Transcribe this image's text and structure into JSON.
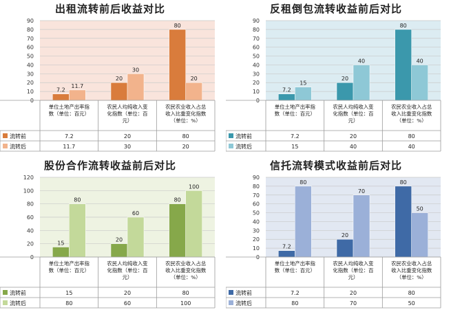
{
  "chart_data": [
    {
      "type": "bar",
      "title": "出租流转前后收益对比",
      "categories": [
        "单位土地产出率指数（单位：百元）",
        "农民人均纯收入变化指数（单位：百元）",
        "农民农业收入占总收入比重变化指数（单位：%）"
      ],
      "category_lines": [
        [
          "单位土地产出率指",
          "数（单位：百元）"
        ],
        [
          "农民人均纯收入变",
          "化指数（单位：百",
          "元）"
        ],
        [
          "农民农业收入占总",
          "收入比重变化指数",
          "（单位：%）"
        ]
      ],
      "series": [
        {
          "name": "流转前",
          "values": [
            7.2,
            20,
            80
          ],
          "labels": [
            "7.2",
            "20",
            "80"
          ]
        },
        {
          "name": "流转后",
          "values": [
            11.7,
            30,
            20
          ],
          "labels": [
            "11.7",
            "30",
            "20"
          ]
        }
      ],
      "ylim": [
        0,
        90
      ],
      "yticks": [
        0,
        10,
        20,
        30,
        40,
        50,
        60,
        70,
        80,
        90
      ],
      "colors": [
        "#d97c3c",
        "#f2b38c"
      ],
      "plot_bg": "#f9e4dc",
      "grid": true
    },
    {
      "type": "bar",
      "title": "反租倒包流转收益前后对比",
      "categories": [
        "单位土地产出率指数（单位：百元）",
        "农民人均纯收入变化指数（单位：百元）",
        "农民农业收入占总收入比重变化指数（单位：%）"
      ],
      "category_lines": [
        [
          "单位土地产出率指",
          "数（单位：百元）"
        ],
        [
          "农民人均纯收入变",
          "化指数（单位：百",
          "元）"
        ],
        [
          "农民农业收入占总",
          "收入比重变化指数",
          "（单位：%）"
        ]
      ],
      "series": [
        {
          "name": "流转前",
          "values": [
            7.2,
            20,
            80
          ],
          "labels": [
            "7.2",
            "20",
            "80"
          ]
        },
        {
          "name": "流转后",
          "values": [
            15,
            40,
            40
          ],
          "labels": [
            "15",
            "40",
            "40"
          ]
        }
      ],
      "ylim": [
        0,
        90
      ],
      "yticks": [
        0,
        10,
        20,
        30,
        40,
        50,
        60,
        70,
        80,
        90
      ],
      "colors": [
        "#3b98ac",
        "#8ec8d6"
      ],
      "plot_bg": "#dcecf2",
      "grid": true
    },
    {
      "type": "bar",
      "title": "股份合作流转收益前后对比",
      "categories": [
        "单位土地产出率指数（单位：百元）",
        "农民人均纯收入变化指数（单位：百元）",
        "农民农业收入占总收入比重变化指数（单位：%）"
      ],
      "category_lines": [
        [
          "单位土地产出率指",
          "数（单位：百元）"
        ],
        [
          "农民人均纯收入变",
          "化指数（单位：百",
          "元）"
        ],
        [
          "农民农业收入占总",
          "收入比重变化指数",
          "（单位：%）"
        ]
      ],
      "series": [
        {
          "name": "流转前",
          "values": [
            15,
            20,
            80
          ],
          "labels": [
            "15",
            "20",
            "80"
          ]
        },
        {
          "name": "流转后",
          "values": [
            80,
            60,
            100
          ],
          "labels": [
            "80",
            "60",
            "100"
          ]
        }
      ],
      "ylim": [
        0,
        120
      ],
      "yticks": [
        0,
        20,
        40,
        60,
        80,
        100,
        120
      ],
      "colors": [
        "#86a84a",
        "#c3d99a"
      ],
      "plot_bg": "#eef3e2",
      "grid": true
    },
    {
      "type": "bar",
      "title": "信托流转模式收益前后对比",
      "categories": [
        "单位土地产出率指数（单位：百元）",
        "农民人均纯收入变化指数（单位：百元）",
        "农民农业收入占总收入比重变化指数（单位：%）"
      ],
      "category_lines": [
        [
          "单位土地产出率指",
          "数（单位：百元）"
        ],
        [
          "农民人均纯收入变",
          "化指数（单位：百",
          "元）"
        ],
        [
          "农民农业收入占总",
          "收入比重变化指数",
          "（单位：%）"
        ]
      ],
      "series": [
        {
          "name": "流转前",
          "values": [
            7.2,
            20,
            80
          ],
          "labels": [
            "7.2",
            "20",
            "80"
          ]
        },
        {
          "name": "流转后",
          "values": [
            80,
            70,
            50
          ],
          "labels": [
            "80",
            "70",
            "50"
          ]
        }
      ],
      "ylim": [
        0,
        90
      ],
      "yticks": [
        0,
        10,
        20,
        30,
        40,
        50,
        60,
        70,
        80,
        90
      ],
      "colors": [
        "#3f6aa6",
        "#9bb0d8"
      ],
      "plot_bg": "#e2e8f2",
      "grid": true
    }
  ]
}
